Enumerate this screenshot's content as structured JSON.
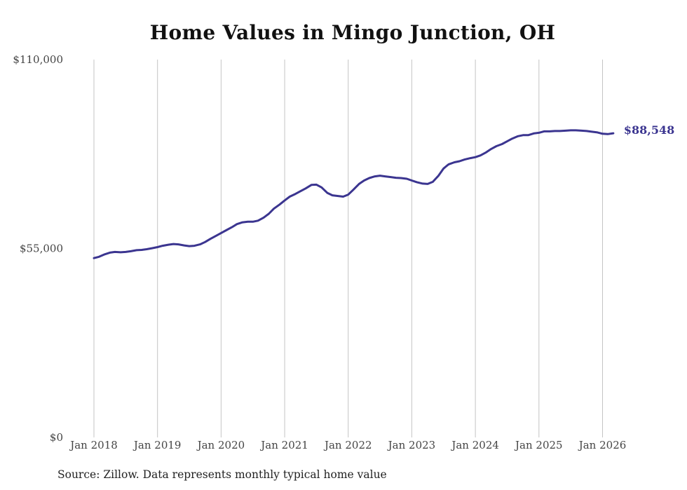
{
  "chart_data": {
    "type": "line",
    "title": "Home Values in Mingo Junction, OH",
    "xlabel": "",
    "ylabel": "",
    "ylim": [
      0,
      110000
    ],
    "yticks": [
      {
        "value": 0,
        "label": "$0"
      },
      {
        "value": 55000,
        "label": "$55,000"
      },
      {
        "value": 110000,
        "label": "$110,000"
      }
    ],
    "xticks": [
      {
        "value": 2018,
        "label": "Jan 2018"
      },
      {
        "value": 2019,
        "label": "Jan 2019"
      },
      {
        "value": 2020,
        "label": "Jan 2020"
      },
      {
        "value": 2021,
        "label": "Jan 2021"
      },
      {
        "value": 2022,
        "label": "Jan 2022"
      },
      {
        "value": 2023,
        "label": "Jan 2023"
      },
      {
        "value": 2024,
        "label": "Jan 2024"
      },
      {
        "value": 2025,
        "label": "Jan 2025"
      },
      {
        "value": 2026,
        "label": "Jan 2026"
      }
    ],
    "xlim": [
      2018,
      2026.17
    ],
    "series": [
      {
        "name": "Typical home value",
        "color": "#3b3590",
        "points": [
          [
            2018.0,
            52200
          ],
          [
            2018.08,
            52600
          ],
          [
            2018.17,
            53300
          ],
          [
            2018.25,
            53800
          ],
          [
            2018.33,
            54000
          ],
          [
            2018.42,
            53900
          ],
          [
            2018.5,
            54000
          ],
          [
            2018.58,
            54200
          ],
          [
            2018.67,
            54500
          ],
          [
            2018.75,
            54600
          ],
          [
            2018.83,
            54800
          ],
          [
            2018.92,
            55100
          ],
          [
            2019.0,
            55400
          ],
          [
            2019.08,
            55800
          ],
          [
            2019.17,
            56100
          ],
          [
            2019.25,
            56300
          ],
          [
            2019.33,
            56200
          ],
          [
            2019.42,
            55900
          ],
          [
            2019.5,
            55700
          ],
          [
            2019.58,
            55800
          ],
          [
            2019.67,
            56200
          ],
          [
            2019.75,
            56900
          ],
          [
            2019.83,
            57800
          ],
          [
            2019.92,
            58700
          ],
          [
            2020.0,
            59500
          ],
          [
            2020.08,
            60300
          ],
          [
            2020.17,
            61200
          ],
          [
            2020.25,
            62100
          ],
          [
            2020.33,
            62600
          ],
          [
            2020.42,
            62800
          ],
          [
            2020.5,
            62800
          ],
          [
            2020.58,
            63100
          ],
          [
            2020.67,
            64000
          ],
          [
            2020.75,
            65100
          ],
          [
            2020.83,
            66600
          ],
          [
            2020.92,
            67800
          ],
          [
            2021.0,
            69000
          ],
          [
            2021.08,
            70100
          ],
          [
            2021.17,
            70900
          ],
          [
            2021.25,
            71700
          ],
          [
            2021.33,
            72500
          ],
          [
            2021.42,
            73500
          ],
          [
            2021.5,
            73600
          ],
          [
            2021.58,
            72800
          ],
          [
            2021.67,
            71200
          ],
          [
            2021.75,
            70500
          ],
          [
            2021.83,
            70300
          ],
          [
            2021.92,
            70100
          ],
          [
            2022.0,
            70700
          ],
          [
            2022.08,
            72100
          ],
          [
            2022.17,
            73800
          ],
          [
            2022.25,
            74800
          ],
          [
            2022.33,
            75500
          ],
          [
            2022.42,
            76000
          ],
          [
            2022.5,
            76200
          ],
          [
            2022.58,
            76000
          ],
          [
            2022.67,
            75800
          ],
          [
            2022.75,
            75600
          ],
          [
            2022.83,
            75500
          ],
          [
            2022.92,
            75300
          ],
          [
            2023.0,
            74800
          ],
          [
            2023.08,
            74300
          ],
          [
            2023.17,
            73900
          ],
          [
            2023.25,
            73800
          ],
          [
            2023.33,
            74400
          ],
          [
            2023.42,
            76200
          ],
          [
            2023.5,
            78300
          ],
          [
            2023.58,
            79500
          ],
          [
            2023.67,
            80100
          ],
          [
            2023.75,
            80400
          ],
          [
            2023.83,
            80900
          ],
          [
            2023.92,
            81300
          ],
          [
            2024.0,
            81600
          ],
          [
            2024.08,
            82100
          ],
          [
            2024.17,
            83000
          ],
          [
            2024.25,
            84000
          ],
          [
            2024.33,
            84800
          ],
          [
            2024.42,
            85400
          ],
          [
            2024.5,
            86200
          ],
          [
            2024.58,
            87000
          ],
          [
            2024.67,
            87700
          ],
          [
            2024.75,
            88000
          ],
          [
            2024.83,
            88000
          ],
          [
            2024.92,
            88500
          ],
          [
            2025.0,
            88700
          ],
          [
            2025.08,
            89100
          ],
          [
            2025.17,
            89100
          ],
          [
            2025.25,
            89200
          ],
          [
            2025.33,
            89200
          ],
          [
            2025.42,
            89300
          ],
          [
            2025.5,
            89400
          ],
          [
            2025.58,
            89400
          ],
          [
            2025.67,
            89300
          ],
          [
            2025.75,
            89200
          ],
          [
            2025.83,
            89000
          ],
          [
            2025.92,
            88800
          ],
          [
            2026.0,
            88400
          ],
          [
            2026.08,
            88300
          ],
          [
            2026.17,
            88548
          ]
        ],
        "end_label": "$88,548"
      }
    ]
  },
  "source_text": "Source: Zillow. Data represents monthly typical home value"
}
